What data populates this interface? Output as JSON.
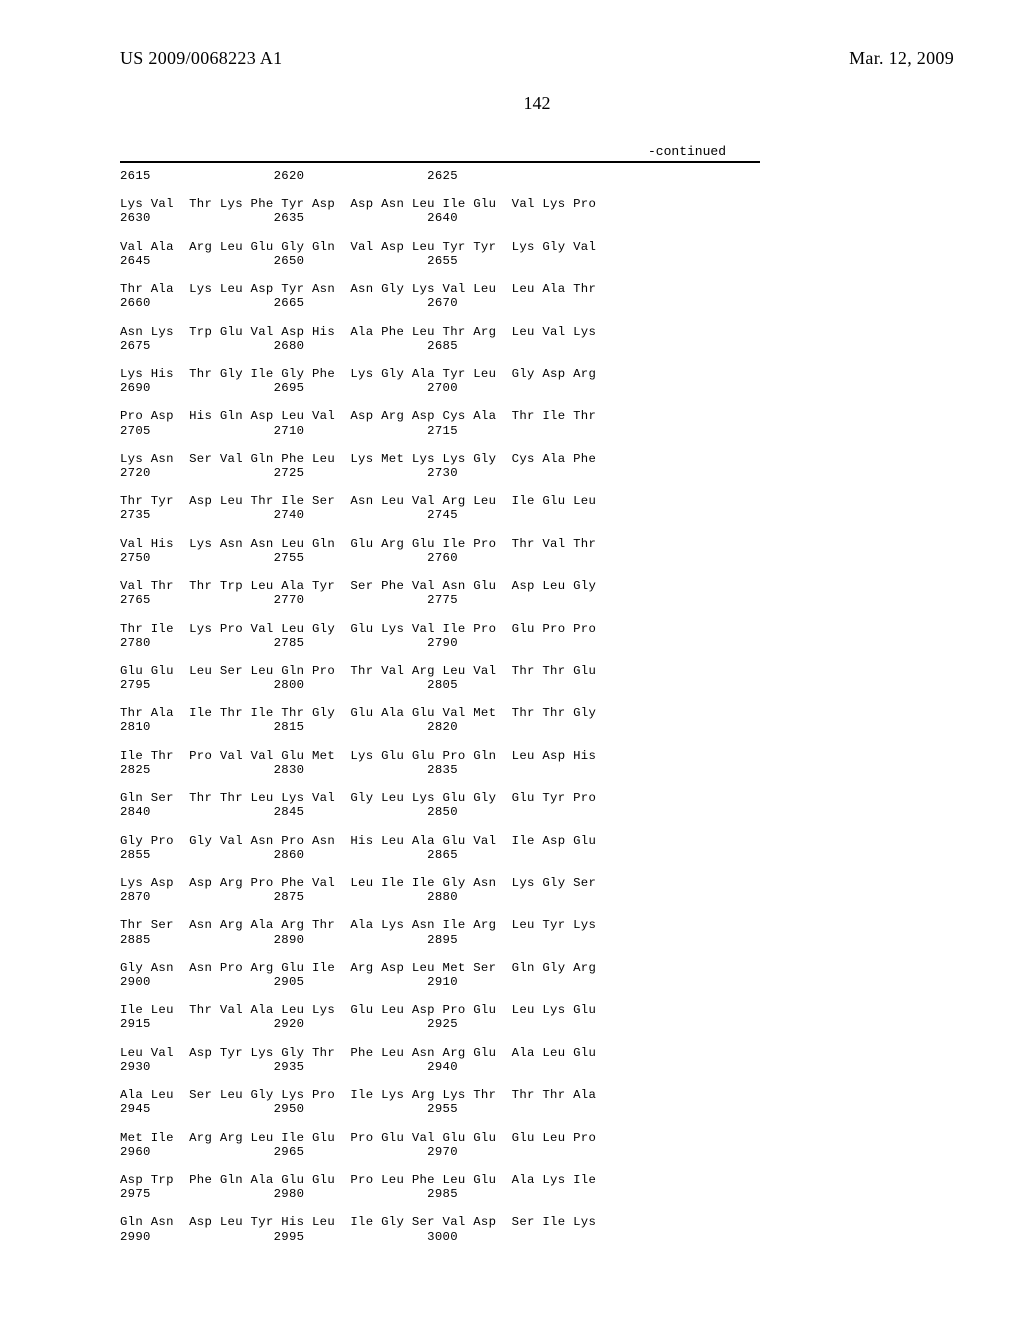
{
  "header": {
    "pub_number": "US 2009/0068223 A1",
    "pub_date": "Mar. 12, 2009"
  },
  "page_number": "142",
  "continued_label": "-continued",
  "sequence_rows": [
    {
      "aa": "2615                2620                2625"
    },
    {
      "aa": ""
    },
    {
      "aa": "Lys Val  Thr Lys Phe Tyr Asp  Asp Asn Leu Ile Glu  Val Lys Pro"
    },
    {
      "aa": "2630                2635                2640"
    },
    {
      "aa": ""
    },
    {
      "aa": "Val Ala  Arg Leu Glu Gly Gln  Val Asp Leu Tyr Tyr  Lys Gly Val"
    },
    {
      "aa": "2645                2650                2655"
    },
    {
      "aa": ""
    },
    {
      "aa": "Thr Ala  Lys Leu Asp Tyr Asn  Asn Gly Lys Val Leu  Leu Ala Thr"
    },
    {
      "aa": "2660                2665                2670"
    },
    {
      "aa": ""
    },
    {
      "aa": "Asn Lys  Trp Glu Val Asp His  Ala Phe Leu Thr Arg  Leu Val Lys"
    },
    {
      "aa": "2675                2680                2685"
    },
    {
      "aa": ""
    },
    {
      "aa": "Lys His  Thr Gly Ile Gly Phe  Lys Gly Ala Tyr Leu  Gly Asp Arg"
    },
    {
      "aa": "2690                2695                2700"
    },
    {
      "aa": ""
    },
    {
      "aa": "Pro Asp  His Gln Asp Leu Val  Asp Arg Asp Cys Ala  Thr Ile Thr"
    },
    {
      "aa": "2705                2710                2715"
    },
    {
      "aa": ""
    },
    {
      "aa": "Lys Asn  Ser Val Gln Phe Leu  Lys Met Lys Lys Gly  Cys Ala Phe"
    },
    {
      "aa": "2720                2725                2730"
    },
    {
      "aa": ""
    },
    {
      "aa": "Thr Tyr  Asp Leu Thr Ile Ser  Asn Leu Val Arg Leu  Ile Glu Leu"
    },
    {
      "aa": "2735                2740                2745"
    },
    {
      "aa": ""
    },
    {
      "aa": "Val His  Lys Asn Asn Leu Gln  Glu Arg Glu Ile Pro  Thr Val Thr"
    },
    {
      "aa": "2750                2755                2760"
    },
    {
      "aa": ""
    },
    {
      "aa": "Val Thr  Thr Trp Leu Ala Tyr  Ser Phe Val Asn Glu  Asp Leu Gly"
    },
    {
      "aa": "2765                2770                2775"
    },
    {
      "aa": ""
    },
    {
      "aa": "Thr Ile  Lys Pro Val Leu Gly  Glu Lys Val Ile Pro  Glu Pro Pro"
    },
    {
      "aa": "2780                2785                2790"
    },
    {
      "aa": ""
    },
    {
      "aa": "Glu Glu  Leu Ser Leu Gln Pro  Thr Val Arg Leu Val  Thr Thr Glu"
    },
    {
      "aa": "2795                2800                2805"
    },
    {
      "aa": ""
    },
    {
      "aa": "Thr Ala  Ile Thr Ile Thr Gly  Glu Ala Glu Val Met  Thr Thr Gly"
    },
    {
      "aa": "2810                2815                2820"
    },
    {
      "aa": ""
    },
    {
      "aa": "Ile Thr  Pro Val Val Glu Met  Lys Glu Glu Pro Gln  Leu Asp His"
    },
    {
      "aa": "2825                2830                2835"
    },
    {
      "aa": ""
    },
    {
      "aa": "Gln Ser  Thr Thr Leu Lys Val  Gly Leu Lys Glu Gly  Glu Tyr Pro"
    },
    {
      "aa": "2840                2845                2850"
    },
    {
      "aa": ""
    },
    {
      "aa": "Gly Pro  Gly Val Asn Pro Asn  His Leu Ala Glu Val  Ile Asp Glu"
    },
    {
      "aa": "2855                2860                2865"
    },
    {
      "aa": ""
    },
    {
      "aa": "Lys Asp  Asp Arg Pro Phe Val  Leu Ile Ile Gly Asn  Lys Gly Ser"
    },
    {
      "aa": "2870                2875                2880"
    },
    {
      "aa": ""
    },
    {
      "aa": "Thr Ser  Asn Arg Ala Arg Thr  Ala Lys Asn Ile Arg  Leu Tyr Lys"
    },
    {
      "aa": "2885                2890                2895"
    },
    {
      "aa": ""
    },
    {
      "aa": "Gly Asn  Asn Pro Arg Glu Ile  Arg Asp Leu Met Ser  Gln Gly Arg"
    },
    {
      "aa": "2900                2905                2910"
    },
    {
      "aa": ""
    },
    {
      "aa": "Ile Leu  Thr Val Ala Leu Lys  Glu Leu Asp Pro Glu  Leu Lys Glu"
    },
    {
      "aa": "2915                2920                2925"
    },
    {
      "aa": ""
    },
    {
      "aa": "Leu Val  Asp Tyr Lys Gly Thr  Phe Leu Asn Arg Glu  Ala Leu Glu"
    },
    {
      "aa": "2930                2935                2940"
    },
    {
      "aa": ""
    },
    {
      "aa": "Ala Leu  Ser Leu Gly Lys Pro  Ile Lys Arg Lys Thr  Thr Thr Ala"
    },
    {
      "aa": "2945                2950                2955"
    },
    {
      "aa": ""
    },
    {
      "aa": "Met Ile  Arg Arg Leu Ile Glu  Pro Glu Val Glu Glu  Glu Leu Pro"
    },
    {
      "aa": "2960                2965                2970"
    },
    {
      "aa": ""
    },
    {
      "aa": "Asp Trp  Phe Gln Ala Glu Glu  Pro Leu Phe Leu Glu  Ala Lys Ile"
    },
    {
      "aa": "2975                2980                2985"
    },
    {
      "aa": ""
    },
    {
      "aa": "Gln Asn  Asp Leu Tyr His Leu  Ile Gly Ser Val Asp  Ser Ile Lys"
    },
    {
      "aa": "2990                2995                3000"
    }
  ]
}
